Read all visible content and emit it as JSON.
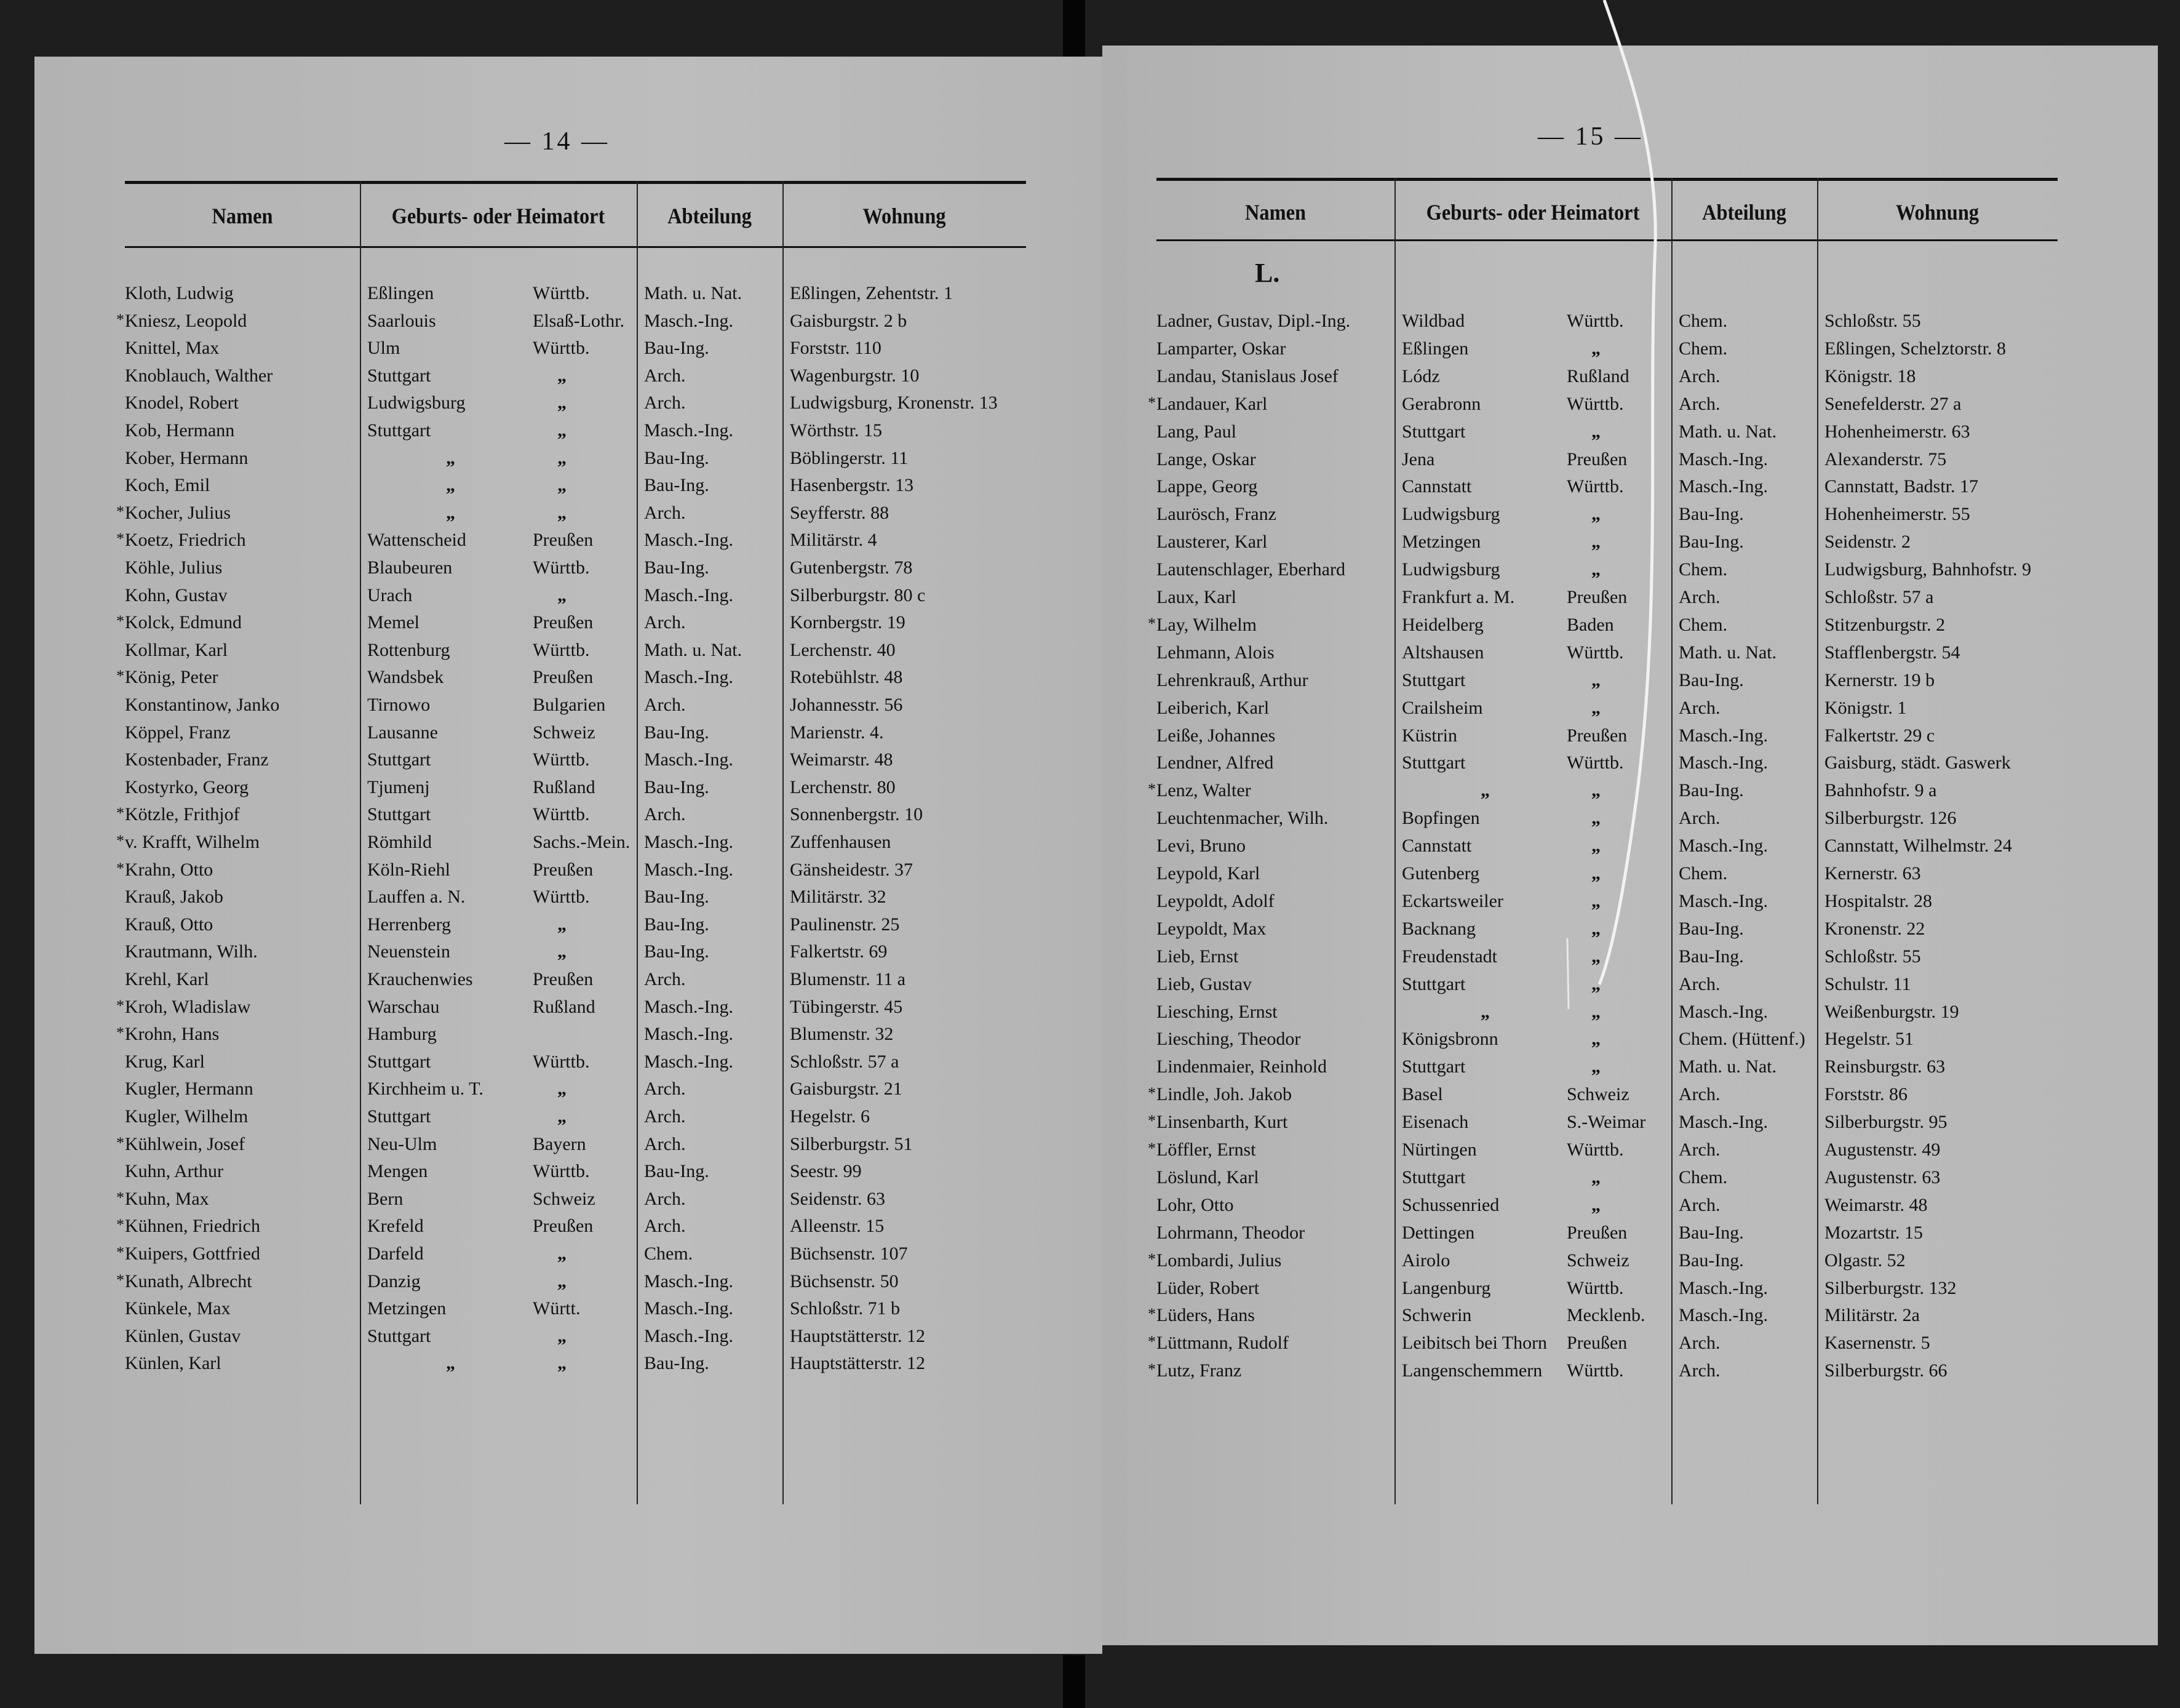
{
  "headers": {
    "name": "Namen",
    "origin": "Geburts- oder Heimatort",
    "department": "Abteilung",
    "residence": "Wohnung"
  },
  "ditto": "„",
  "left_page": {
    "page_number": "— 14 —",
    "rows": [
      {
        "mark": "",
        "name": "Kloth, Ludwig",
        "place": "Eßlingen",
        "state": "Württb.",
        "dept": "Math. u. Nat.",
        "address": "Eßlingen, Zehentstr. 1"
      },
      {
        "mark": "*",
        "name": "Kniesz, Leopold",
        "place": "Saarlouis",
        "state": "Elsaß-Lothr.",
        "dept": "Masch.-Ing.",
        "address": "Gaisburgstr. 2 b"
      },
      {
        "mark": "",
        "name": "Knittel, Max",
        "place": "Ulm",
        "state": "Württb.",
        "dept": "Bau-Ing.",
        "address": "Forststr. 110"
      },
      {
        "mark": "",
        "name": "Knoblauch, Walther",
        "place": "Stuttgart",
        "state": "„",
        "dept": "Arch.",
        "address": "Wagenburgstr. 10"
      },
      {
        "mark": "",
        "name": "Knodel, Robert",
        "place": "Ludwigsburg",
        "state": "„",
        "dept": "Arch.",
        "address": "Ludwigsburg, Kronenstr. 13"
      },
      {
        "mark": "",
        "name": "Kob, Hermann",
        "place": "Stuttgart",
        "state": "„",
        "dept": "Masch.-Ing.",
        "address": "Wörthstr. 15"
      },
      {
        "mark": "",
        "name": "Kober, Hermann",
        "place": "„",
        "state": "„",
        "dept": "Bau-Ing.",
        "address": "Böblingerstr. 11"
      },
      {
        "mark": "",
        "name": "Koch, Emil",
        "place": "„",
        "state": "„",
        "dept": "Bau-Ing.",
        "address": "Hasenbergstr. 13"
      },
      {
        "mark": "*",
        "name": "Kocher, Julius",
        "place": "„",
        "state": "„",
        "dept": "Arch.",
        "address": "Seyfferstr. 88"
      },
      {
        "mark": "*",
        "name": "Koetz, Friedrich",
        "place": "Wattenscheid",
        "state": "Preußen",
        "dept": "Masch.-Ing.",
        "address": "Militärstr. 4"
      },
      {
        "mark": "",
        "name": "Köhle, Julius",
        "place": "Blaubeuren",
        "state": "Württb.",
        "dept": "Bau-Ing.",
        "address": "Gutenbergstr. 78"
      },
      {
        "mark": "",
        "name": "Kohn, Gustav",
        "place": "Urach",
        "state": "„",
        "dept": "Masch.-Ing.",
        "address": "Silberburgstr. 80 c"
      },
      {
        "mark": "*",
        "name": "Kolck, Edmund",
        "place": "Memel",
        "state": "Preußen",
        "dept": "Arch.",
        "address": "Kornbergstr. 19"
      },
      {
        "mark": "",
        "name": "Kollmar, Karl",
        "place": "Rottenburg",
        "state": "Württb.",
        "dept": "Math. u. Nat.",
        "address": "Lerchenstr. 40"
      },
      {
        "mark": "*",
        "name": "König, Peter",
        "place": "Wandsbek",
        "state": "Preußen",
        "dept": "Masch.-Ing.",
        "address": "Rotebühlstr. 48"
      },
      {
        "mark": "",
        "name": "Konstantinow, Janko",
        "place": "Tirnowo",
        "state": "Bulgarien",
        "dept": "Arch.",
        "address": "Johannesstr. 56"
      },
      {
        "mark": "",
        "name": "Köppel, Franz",
        "place": "Lausanne",
        "state": "Schweiz",
        "dept": "Bau-Ing.",
        "address": "Marienstr. 4."
      },
      {
        "mark": "",
        "name": "Kostenbader, Franz",
        "place": "Stuttgart",
        "state": "Württb.",
        "dept": "Masch.-Ing.",
        "address": "Weimarstr. 48"
      },
      {
        "mark": "",
        "name": "Kostyrko, Georg",
        "place": "Tjumenj",
        "state": "Rußland",
        "dept": "Bau-Ing.",
        "address": "Lerchenstr. 80"
      },
      {
        "mark": "*",
        "name": "Kötzle, Frithjof",
        "place": "Stuttgart",
        "state": "Württb.",
        "dept": "Arch.",
        "address": "Sonnenbergstr. 10"
      },
      {
        "mark": "*",
        "name": "v. Krafft, Wilhelm",
        "place": "Römhild",
        "state": "Sachs.-Mein.",
        "dept": "Masch.-Ing.",
        "address": "Zuffenhausen"
      },
      {
        "mark": "*",
        "name": "Krahn, Otto",
        "place": "Köln-Riehl",
        "state": "Preußen",
        "dept": "Masch.-Ing.",
        "address": "Gänsheidestr. 37"
      },
      {
        "mark": "",
        "name": "Krauß, Jakob",
        "place": "Lauffen a. N.",
        "state": "Württb.",
        "dept": "Bau-Ing.",
        "address": "Militärstr. 32"
      },
      {
        "mark": "",
        "name": "Krauß, Otto",
        "place": "Herrenberg",
        "state": "„",
        "dept": "Bau-Ing.",
        "address": "Paulinenstr. 25"
      },
      {
        "mark": "",
        "name": "Krautmann, Wilh.",
        "place": "Neuenstein",
        "state": "„",
        "dept": "Bau-Ing.",
        "address": "Falkertstr. 69"
      },
      {
        "mark": "",
        "name": "Krehl, Karl",
        "place": "Krauchenwies",
        "state": "Preußen",
        "dept": "Arch.",
        "address": "Blumenstr. 11 a"
      },
      {
        "mark": "*",
        "name": "Kroh, Wladislaw",
        "place": "Warschau",
        "state": "Rußland",
        "dept": "Masch.-Ing.",
        "address": "Tübingerstr. 45"
      },
      {
        "mark": "*",
        "name": "Krohn, Hans",
        "place": "Hamburg",
        "state": "",
        "dept": "Masch.-Ing.",
        "address": "Blumenstr. 32"
      },
      {
        "mark": "",
        "name": "Krug, Karl",
        "place": "Stuttgart",
        "state": "Württb.",
        "dept": "Masch.-Ing.",
        "address": "Schloßstr. 57 a"
      },
      {
        "mark": "",
        "name": "Kugler, Hermann",
        "place": "Kirchheim u. T.",
        "state": "„",
        "dept": "Arch.",
        "address": "Gaisburgstr. 21"
      },
      {
        "mark": "",
        "name": "Kugler, Wilhelm",
        "place": "Stuttgart",
        "state": "„",
        "dept": "Arch.",
        "address": "Hegelstr. 6"
      },
      {
        "mark": "*",
        "name": "Kühlwein, Josef",
        "place": "Neu-Ulm",
        "state": "Bayern",
        "dept": "Arch.",
        "address": "Silberburgstr. 51"
      },
      {
        "mark": "",
        "name": "Kuhn, Arthur",
        "place": "Mengen",
        "state": "Württb.",
        "dept": "Bau-Ing.",
        "address": "Seestr. 99"
      },
      {
        "mark": "*",
        "name": "Kuhn, Max",
        "place": "Bern",
        "state": "Schweiz",
        "dept": "Arch.",
        "address": "Seidenstr. 63"
      },
      {
        "mark": "*",
        "name": "Kühnen, Friedrich",
        "place": "Krefeld",
        "state": "Preußen",
        "dept": "Arch.",
        "address": "Alleenstr. 15"
      },
      {
        "mark": "*",
        "name": "Kuipers, Gottfried",
        "place": "Darfeld",
        "state": "„",
        "dept": "Chem.",
        "address": "Büchsenstr. 107"
      },
      {
        "mark": "*",
        "name": "Kunath, Albrecht",
        "place": "Danzig",
        "state": "„",
        "dept": "Masch.-Ing.",
        "address": "Büchsenstr. 50"
      },
      {
        "mark": "",
        "name": "Künkele, Max",
        "place": "Metzingen",
        "state": "Württ.",
        "dept": "Masch.-Ing.",
        "address": "Schloßstr. 71 b"
      },
      {
        "mark": "",
        "name": "Künlen, Gustav",
        "place": "Stuttgart",
        "state": "„",
        "dept": "Masch.-Ing.",
        "address": "Hauptstätterstr. 12"
      },
      {
        "mark": "",
        "name": "Künlen, Karl",
        "place": "„",
        "state": "„",
        "dept": "Bau-Ing.",
        "address": "Hauptstätterstr. 12"
      }
    ]
  },
  "right_page": {
    "page_number": "— 15 —",
    "section_letter": "L.",
    "rows": [
      {
        "mark": "",
        "name": "Ladner, Gustav, Dipl.-Ing.",
        "place": "Wildbad",
        "state": "Württb.",
        "dept": "Chem.",
        "address": "Schloßstr. 55"
      },
      {
        "mark": "",
        "name": "Lamparter, Oskar",
        "place": "Eßlingen",
        "state": "„",
        "dept": "Chem.",
        "address": "Eßlingen, Schelztorstr. 8"
      },
      {
        "mark": "",
        "name": "Landau, Stanislaus Josef",
        "place": "Lódz",
        "state": "Rußland",
        "dept": "Arch.",
        "address": "Königstr. 18"
      },
      {
        "mark": "*",
        "name": "Landauer, Karl",
        "place": "Gerabronn",
        "state": "Württb.",
        "dept": "Arch.",
        "address": "Senefelderstr. 27 a"
      },
      {
        "mark": "",
        "name": "Lang, Paul",
        "place": "Stuttgart",
        "state": "„",
        "dept": "Math. u. Nat.",
        "address": "Hohenheimerstr. 63"
      },
      {
        "mark": "",
        "name": "Lange, Oskar",
        "place": "Jena",
        "state": "Preußen",
        "dept": "Masch.-Ing.",
        "address": "Alexanderstr. 75"
      },
      {
        "mark": "",
        "name": "Lappe, Georg",
        "place": "Cannstatt",
        "state": "Württb.",
        "dept": "Masch.-Ing.",
        "address": "Cannstatt, Badstr. 17"
      },
      {
        "mark": "",
        "name": "Laurösch, Franz",
        "place": "Ludwigsburg",
        "state": "„",
        "dept": "Bau-Ing.",
        "address": "Hohenheimerstr. 55"
      },
      {
        "mark": "",
        "name": "Lausterer, Karl",
        "place": "Metzingen",
        "state": "„",
        "dept": "Bau-Ing.",
        "address": "Seidenstr. 2"
      },
      {
        "mark": "",
        "name": "Lautenschlager, Eberhard",
        "place": "Ludwigsburg",
        "state": "„",
        "dept": "Chem.",
        "address": "Ludwigsburg, Bahnhofstr. 9"
      },
      {
        "mark": "",
        "name": "Laux, Karl",
        "place": "Frankfurt a. M.",
        "state": "Preußen",
        "dept": "Arch.",
        "address": "Schloßstr. 57 a"
      },
      {
        "mark": "*",
        "name": "Lay, Wilhelm",
        "place": "Heidelberg",
        "state": "Baden",
        "dept": "Chem.",
        "address": "Stitzenburgstr. 2"
      },
      {
        "mark": "",
        "name": "Lehmann, Alois",
        "place": "Altshausen",
        "state": "Württb.",
        "dept": "Math. u. Nat.",
        "address": "Stafflenbergstr. 54"
      },
      {
        "mark": "",
        "name": "Lehrenkrauß, Arthur",
        "place": "Stuttgart",
        "state": "„",
        "dept": "Bau-Ing.",
        "address": "Kernerstr. 19 b"
      },
      {
        "mark": "",
        "name": "Leiberich, Karl",
        "place": "Crailsheim",
        "state": "„",
        "dept": "Arch.",
        "address": "Königstr. 1"
      },
      {
        "mark": "",
        "name": "Leiße, Johannes",
        "place": "Küstrin",
        "state": "Preußen",
        "dept": "Masch.-Ing.",
        "address": "Falkertstr. 29 c"
      },
      {
        "mark": "",
        "name": "Lendner, Alfred",
        "place": "Stuttgart",
        "state": "Württb.",
        "dept": "Masch.-Ing.",
        "address": "Gaisburg, städt. Gaswerk"
      },
      {
        "mark": "*",
        "name": "Lenz, Walter",
        "place": "„",
        "state": "„",
        "dept": "Bau-Ing.",
        "address": "Bahnhofstr. 9 a"
      },
      {
        "mark": "",
        "name": "Leuchtenmacher, Wilh.",
        "place": "Bopfingen",
        "state": "„",
        "dept": "Arch.",
        "address": "Silberburgstr. 126"
      },
      {
        "mark": "",
        "name": "Levi, Bruno",
        "place": "Cannstatt",
        "state": "„",
        "dept": "Masch.-Ing.",
        "address": "Cannstatt, Wilhelmstr. 24"
      },
      {
        "mark": "",
        "name": "Leypold, Karl",
        "place": "Gutenberg",
        "state": "„",
        "dept": "Chem.",
        "address": "Kernerstr. 63"
      },
      {
        "mark": "",
        "name": "Leypoldt, Adolf",
        "place": "Eckartsweiler",
        "state": "„",
        "dept": "Masch.-Ing.",
        "address": "Hospitalstr. 28"
      },
      {
        "mark": "",
        "name": "Leypoldt, Max",
        "place": "Backnang",
        "state": "„",
        "dept": "Bau-Ing.",
        "address": "Kronenstr. 22"
      },
      {
        "mark": "",
        "name": "Lieb, Ernst",
        "place": "Freudenstadt",
        "state": "„",
        "dept": "Bau-Ing.",
        "address": "Schloßstr. 55"
      },
      {
        "mark": "",
        "name": "Lieb, Gustav",
        "place": "Stuttgart",
        "state": "„",
        "dept": "Arch.",
        "address": "Schulstr. 11"
      },
      {
        "mark": "",
        "name": "Liesching, Ernst",
        "place": "„",
        "state": "„",
        "dept": "Masch.-Ing.",
        "address": "Weißenburgstr. 19"
      },
      {
        "mark": "",
        "name": "Liesching, Theodor",
        "place": "Königsbronn",
        "state": "„",
        "dept": "Chem. (Hüttenf.)",
        "address": "Hegelstr. 51"
      },
      {
        "mark": "",
        "name": "Lindenmaier, Reinhold",
        "place": "Stuttgart",
        "state": "„",
        "dept": "Math. u. Nat.",
        "address": "Reinsburgstr. 63"
      },
      {
        "mark": "*",
        "name": "Lindle, Joh. Jakob",
        "place": "Basel",
        "state": "Schweiz",
        "dept": "Arch.",
        "address": "Forststr. 86"
      },
      {
        "mark": "*",
        "name": "Linsenbarth, Kurt",
        "place": "Eisenach",
        "state": "S.-Weimar",
        "dept": "Masch.-Ing.",
        "address": "Silberburgstr. 95"
      },
      {
        "mark": "*",
        "name": "Löffler, Ernst",
        "place": "Nürtingen",
        "state": "Württb.",
        "dept": "Arch.",
        "address": "Augustenstr. 49"
      },
      {
        "mark": "",
        "name": "Löslund, Karl",
        "place": "Stuttgart",
        "state": "„",
        "dept": "Chem.",
        "address": "Augustenstr. 63"
      },
      {
        "mark": "",
        "name": "Lohr, Otto",
        "place": "Schussenried",
        "state": "„",
        "dept": "Arch.",
        "address": "Weimarstr. 48"
      },
      {
        "mark": "",
        "name": "Lohrmann, Theodor",
        "place": "Dettingen",
        "state": "Preußen",
        "dept": "Bau-Ing.",
        "address": "Mozartstr. 15"
      },
      {
        "mark": "*",
        "name": "Lombardi, Julius",
        "place": "Airolo",
        "state": "Schweiz",
        "dept": "Bau-Ing.",
        "address": "Olgastr. 52"
      },
      {
        "mark": "",
        "name": "Lüder, Robert",
        "place": "Langenburg",
        "state": "Württb.",
        "dept": "Masch.-Ing.",
        "address": "Silberburgstr. 132"
      },
      {
        "mark": "*",
        "name": "Lüders, Hans",
        "place": "Schwerin",
        "state": "Mecklenb.",
        "dept": "Masch.-Ing.",
        "address": "Militärstr. 2a"
      },
      {
        "mark": "*",
        "name": "Lüttmann, Rudolf",
        "place": "Leibitsch bei Thorn",
        "state": "Preußen",
        "dept": "Arch.",
        "address": "Kasernenstr. 5"
      },
      {
        "mark": "*",
        "name": "Lutz, Franz",
        "place": "Langenschemmern",
        "state": "Württb.",
        "dept": "Arch.",
        "address": "Silberburgstr. 66"
      }
    ]
  }
}
